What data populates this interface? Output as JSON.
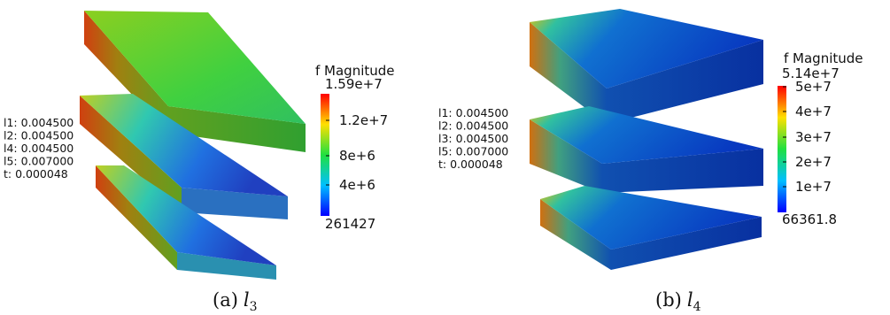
{
  "panels": [
    {
      "params": [
        "l1: 0.004500",
        "l2: 0.004500",
        "l4: 0.004500",
        "l5: 0.007000",
        "t: 0.000048"
      ],
      "colorbar": {
        "title": "f Magnitude",
        "max": "1.59e+7",
        "ticks": [
          "1.2e+7",
          "8e+6",
          "4e+6"
        ],
        "min": "261427"
      },
      "caption": {
        "label": "(a)",
        "symbol": "l",
        "subscript": "3"
      }
    },
    {
      "params": [
        "l1: 0.004500",
        "l2: 0.004500",
        "l3: 0.004500",
        "l5: 0.007000",
        "t: 0.000048"
      ],
      "colorbar": {
        "title": "f Magnitude",
        "max": "5.14e+7",
        "ticks": [
          "5e+7",
          "4e+7",
          "3e+7",
          "2e+7",
          "1e+7"
        ],
        "min": "66361.8"
      },
      "caption": {
        "label": "(b)",
        "symbol": "l",
        "subscript": "4"
      }
    }
  ]
}
